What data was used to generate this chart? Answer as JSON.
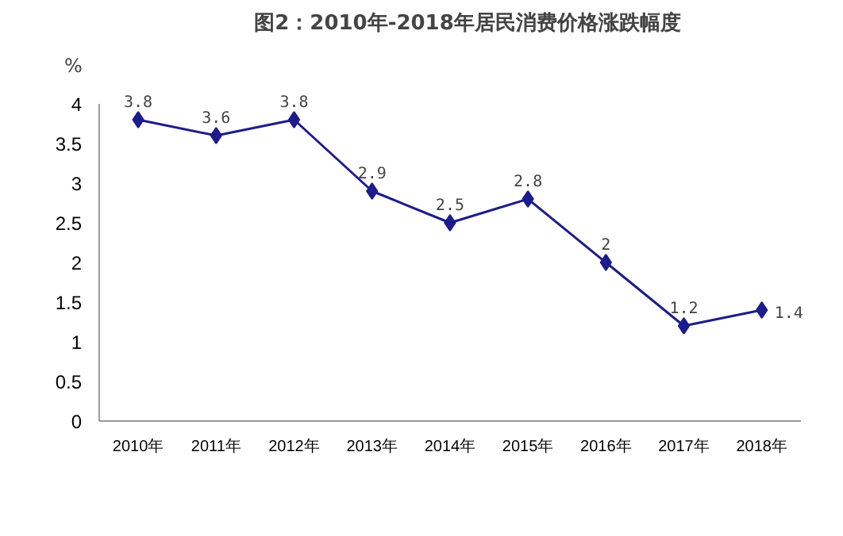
{
  "chart_data": {
    "type": "line",
    "title": "图2：2010年-2018年居民消费价格涨跌幅度",
    "ylabel": "%",
    "categories": [
      "2010年",
      "2011年",
      "2012年",
      "2013年",
      "2014年",
      "2015年",
      "2016年",
      "2017年",
      "2018年"
    ],
    "series": [
      {
        "color": "#1c1c8c",
        "values": [
          3.8,
          3.6,
          3.8,
          2.9,
          2.5,
          2.8,
          2.0,
          1.2,
          1.4
        ]
      }
    ],
    "ylim": [
      0,
      4
    ],
    "yticks": [
      0,
      0.5,
      1,
      1.5,
      2,
      2.5,
      3,
      3.5,
      4
    ],
    "marker": "diamond",
    "line_style": "solid",
    "data_labels": true,
    "grid": false
  }
}
